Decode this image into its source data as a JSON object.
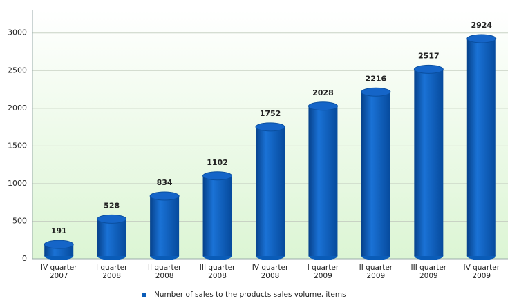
{
  "chart_data": {
    "type": "bar",
    "categories": [
      "IV quarter 2007",
      "I quarter 2008",
      "II quarter 2008",
      "III quarter 2008",
      "IV quarter 2008",
      "I quarter 2009",
      "II quarter 2009",
      "III quarter 2009",
      "IV quarter 2009"
    ],
    "series": [
      {
        "name": "Number of sales to the products sales volume, items",
        "color": "#0a5cb8",
        "values": [
          191,
          528,
          834,
          1102,
          1752,
          2028,
          2216,
          2517,
          2924
        ]
      }
    ],
    "ylim": [
      0,
      3300
    ],
    "yticks": [
      0,
      500,
      1000,
      1500,
      2000,
      2500,
      3000
    ],
    "grid": true,
    "legend": "bottom"
  }
}
